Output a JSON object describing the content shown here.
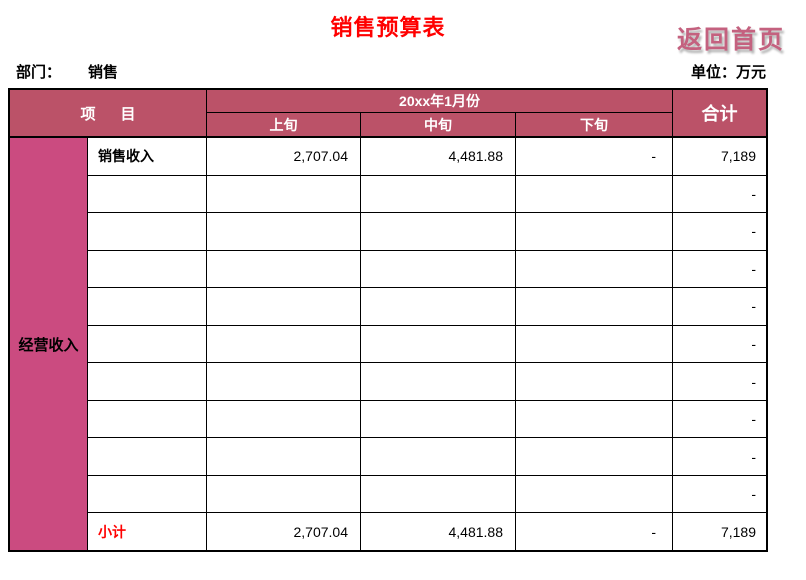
{
  "page": {
    "title": "销售预算表",
    "back_link": "返回首页",
    "dept_label": "部门：",
    "dept_value": "销售",
    "unit_label": "单位：万元"
  },
  "table": {
    "header": {
      "item_label": "项      目",
      "month_label": "20xx年1月份",
      "sub_columns": [
        "上旬",
        "中旬",
        "下旬"
      ],
      "total_label": "合计"
    },
    "row_group_label": "经营收入",
    "rows": [
      {
        "item": "销售收入",
        "early": "2,707.04",
        "mid": "4,481.88",
        "late": "-",
        "total": "7,189",
        "style": "first"
      },
      {
        "item": "",
        "early": "",
        "mid": "",
        "late": "",
        "total": "-",
        "style": "empty"
      },
      {
        "item": "",
        "early": "",
        "mid": "",
        "late": "",
        "total": "-",
        "style": "empty"
      },
      {
        "item": "",
        "early": "",
        "mid": "",
        "late": "",
        "total": "-",
        "style": "empty"
      },
      {
        "item": "",
        "early": "",
        "mid": "",
        "late": "",
        "total": "-",
        "style": "empty"
      },
      {
        "item": "",
        "early": "",
        "mid": "",
        "late": "",
        "total": "-",
        "style": "empty"
      },
      {
        "item": "",
        "early": "",
        "mid": "",
        "late": "",
        "total": "-",
        "style": "empty"
      },
      {
        "item": "",
        "early": "",
        "mid": "",
        "late": "",
        "total": "-",
        "style": "empty"
      },
      {
        "item": "",
        "early": "",
        "mid": "",
        "late": "",
        "total": "-",
        "style": "empty"
      },
      {
        "item": "",
        "early": "",
        "mid": "",
        "late": "",
        "total": "-",
        "style": "empty"
      },
      {
        "item": "小计",
        "early": "2,707.04",
        "mid": "4,481.88",
        "late": "-",
        "total": "7,189",
        "style": "subtotal"
      }
    ]
  },
  "colors": {
    "title_red": "#ff0000",
    "header_bg": "#bb5268",
    "band_bg": "#cb4b80",
    "back_link_pink": "#c4617f",
    "subtotal_red": "#ff0000"
  }
}
